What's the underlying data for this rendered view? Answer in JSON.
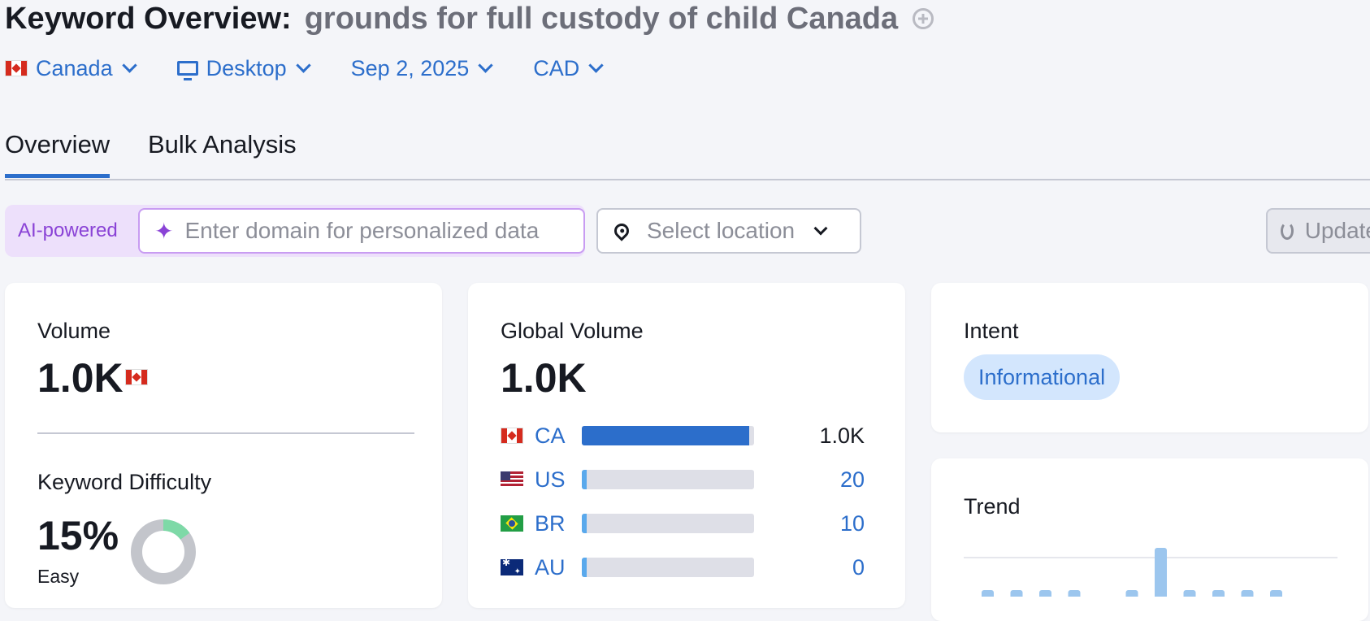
{
  "header": {
    "title_label": "Keyword Overview:",
    "keyword": "grounds for full custody of child Canada"
  },
  "filters": {
    "country": "Canada",
    "device": "Desktop",
    "date": "Sep 2, 2025",
    "currency": "CAD"
  },
  "tabs": [
    {
      "label": "Overview",
      "active": true
    },
    {
      "label": "Bulk Analysis",
      "active": false
    }
  ],
  "personalization": {
    "ai_label": "AI-powered",
    "domain_placeholder": "Enter domain for personalized data",
    "location_placeholder": "Select location",
    "update_label": "Update"
  },
  "volume_card": {
    "label": "Volume",
    "value": "1.0K",
    "kd_label": "Keyword Difficulty",
    "kd_value": "15%",
    "kd_percent": 15,
    "kd_rating": "Easy"
  },
  "global_card": {
    "label": "Global Volume",
    "value": "1.0K",
    "rows": [
      {
        "code": "CA",
        "value": "1.0K",
        "fraction": 0.97
      },
      {
        "code": "US",
        "value": "20",
        "fraction": 0.03
      },
      {
        "code": "BR",
        "value": "10",
        "fraction": 0.03
      },
      {
        "code": "AU",
        "value": "0",
        "fraction": 0.03
      }
    ]
  },
  "intent_card": {
    "label": "Intent",
    "badge": "Informational"
  },
  "trend_card": {
    "label": "Trend",
    "values": [
      1,
      1,
      1,
      1,
      0,
      1,
      10,
      1,
      1,
      1,
      1
    ]
  },
  "colors": {
    "accent": "#2c6ecb",
    "light_bar": "#5aa9ec",
    "kd_green": "#7ed9a7",
    "kd_grey": "#c3c5cb",
    "ai_purple": "#8a43d6"
  }
}
